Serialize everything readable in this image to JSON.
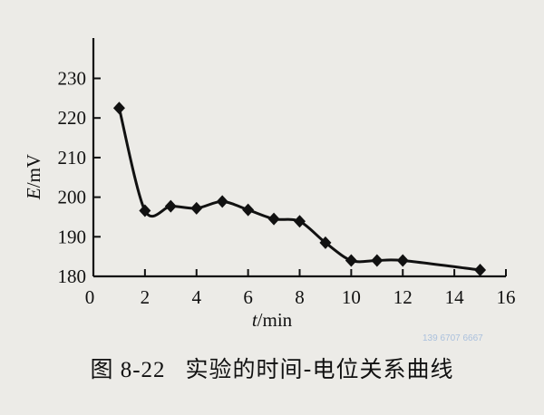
{
  "chart_data": {
    "type": "line",
    "xlabel_italic": "t",
    "xlabel_unit": "/min",
    "ylabel_italic": "E",
    "ylabel_unit": "/mV",
    "xlim": [
      0,
      16
    ],
    "ylim": [
      180,
      235
    ],
    "xticks": [
      "0",
      "2",
      "4",
      "6",
      "8",
      "10",
      "12",
      "14",
      "16"
    ],
    "yticks": [
      "180",
      "190",
      "200",
      "210",
      "220",
      "230"
    ],
    "grid": false,
    "marker": "diamond",
    "line_color": "#111111",
    "x": [
      1,
      2,
      3,
      4,
      5,
      6,
      7,
      8,
      9,
      10,
      11,
      12,
      15
    ],
    "y": [
      222.5,
      196.6,
      197.7,
      197.2,
      198.9,
      196.8,
      194.5,
      193.9,
      188.5,
      184.0,
      184.0,
      184.0,
      181.6
    ]
  },
  "caption": {
    "number": "图 8-22",
    "text": "实验的时间-电位关系曲线"
  },
  "watermark": "139 6707 6667"
}
